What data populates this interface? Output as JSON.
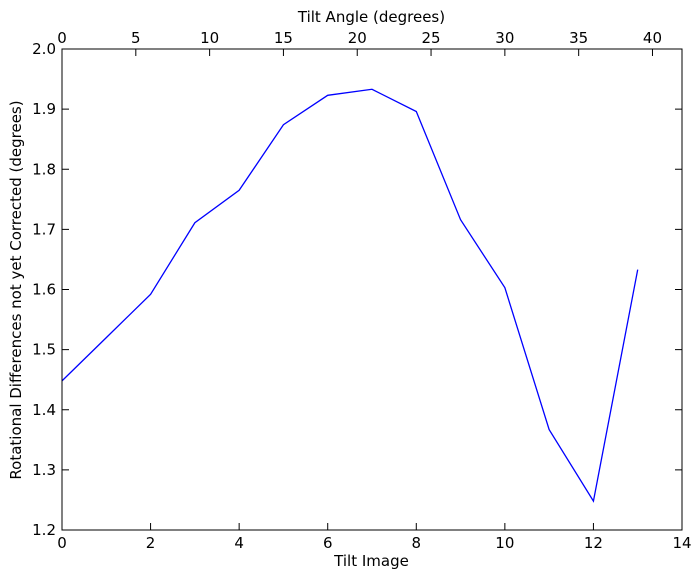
{
  "chart_data": {
    "type": "line",
    "xlabel": "Tilt Image",
    "ylabel": "Rotational Differences not yet Corrected (degrees)",
    "top_xlabel": "Tilt Angle (degrees)",
    "xlim": [
      0,
      14
    ],
    "ylim": [
      1.2,
      2.0
    ],
    "top_xlim": [
      0,
      42
    ],
    "xticks": [
      0,
      2,
      4,
      6,
      8,
      10,
      12,
      14
    ],
    "xtick_labels": [
      "0",
      "2",
      "4",
      "6",
      "8",
      "10",
      "12",
      "14"
    ],
    "yticks": [
      1.2,
      1.3,
      1.4,
      1.5,
      1.6,
      1.7,
      1.8,
      1.9,
      2.0
    ],
    "ytick_labels": [
      "1.2",
      "1.3",
      "1.4",
      "1.5",
      "1.6",
      "1.7",
      "1.8",
      "1.9",
      "2.0"
    ],
    "top_xticks": [
      0,
      5,
      10,
      15,
      20,
      25,
      30,
      35,
      40
    ],
    "top_xtick_labels": [
      "0",
      "5",
      "10",
      "15",
      "20",
      "25",
      "30",
      "35",
      "40"
    ],
    "grid": false,
    "series": [
      {
        "color": "#0000ff",
        "x": [
          0,
          1,
          2,
          3,
          4,
          5,
          6,
          7,
          8,
          9,
          10,
          11,
          12,
          13
        ],
        "y": [
          1.448,
          1.52,
          1.592,
          1.711,
          1.765,
          1.874,
          1.923,
          1.933,
          1.896,
          1.716,
          1.603,
          1.367,
          1.248,
          1.633
        ]
      }
    ]
  }
}
